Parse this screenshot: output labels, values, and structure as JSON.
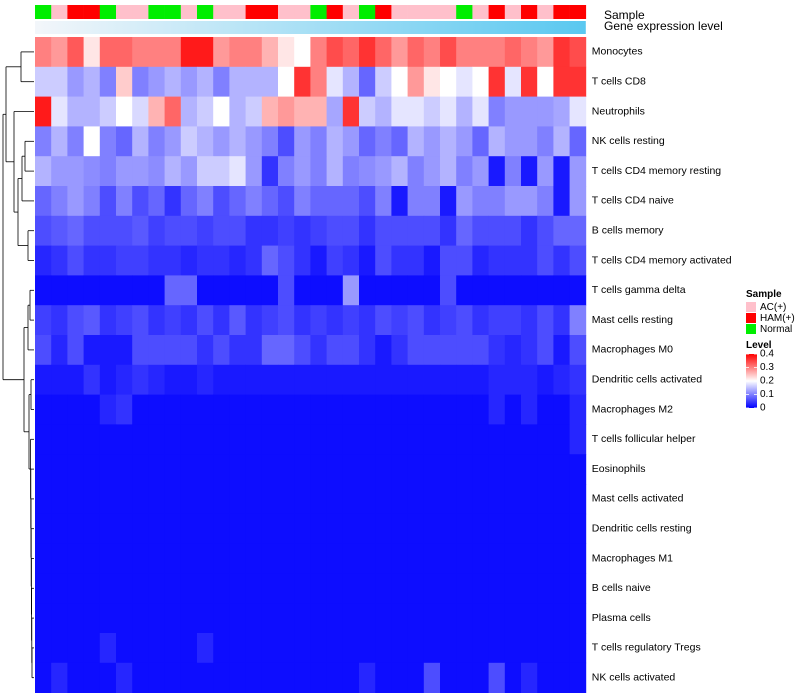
{
  "chart_data": {
    "type": "heatmap",
    "annotation_labels": {
      "sample": "Sample",
      "expression": "Gene expression level"
    },
    "sample_groups": [
      "Normal",
      "AC(+)",
      "HAM(+)",
      "HAM(+)",
      "Normal",
      "AC(+)",
      "AC(+)",
      "Normal",
      "Normal",
      "AC(+)",
      "Normal",
      "AC(+)",
      "AC(+)",
      "HAM(+)",
      "HAM(+)",
      "AC(+)",
      "AC(+)",
      "Normal",
      "HAM(+)",
      "AC(+)",
      "Normal",
      "HAM(+)",
      "AC(+)",
      "AC(+)",
      "AC(+)",
      "AC(+)",
      "Normal",
      "AC(+)",
      "HAM(+)",
      "AC(+)",
      "HAM(+)",
      "AC(+)",
      "HAM(+)",
      "HAM(+)"
    ],
    "group_colors": {
      "AC(+)": "#FFC0CB",
      "HAM(+)": "#FF0000",
      "Normal": "#00EE00"
    },
    "expression_bar_colors": [
      "#F3F6FA",
      "#5AC8F0"
    ],
    "rows": [
      {
        "name": "Monocytes",
        "values": [
          0.3,
          0.28,
          0.33,
          0.22,
          0.32,
          0.32,
          0.3,
          0.3,
          0.3,
          0.38,
          0.38,
          0.28,
          0.3,
          0.3,
          0.26,
          0.22,
          0.2,
          0.3,
          0.34,
          0.32,
          0.36,
          0.32,
          0.28,
          0.32,
          0.3,
          0.34,
          0.3,
          0.3,
          0.3,
          0.32,
          0.3,
          0.28,
          0.36,
          0.34
        ]
      },
      {
        "name": "T cells CD8",
        "values": [
          0.16,
          0.16,
          0.12,
          0.14,
          0.1,
          0.24,
          0.1,
          0.12,
          0.14,
          0.12,
          0.14,
          0.1,
          0.14,
          0.14,
          0.14,
          0.2,
          0.36,
          0.3,
          0.18,
          0.14,
          0.08,
          0.16,
          0.2,
          0.28,
          0.22,
          0.2,
          0.18,
          0.2,
          0.36,
          0.18,
          0.36,
          0.2,
          0.36,
          0.36
        ]
      },
      {
        "name": "Neutrophils",
        "values": [
          0.38,
          0.18,
          0.14,
          0.14,
          0.16,
          0.2,
          0.17,
          0.26,
          0.32,
          0.14,
          0.16,
          0.2,
          0.14,
          0.16,
          0.26,
          0.28,
          0.26,
          0.26,
          0.13,
          0.36,
          0.16,
          0.14,
          0.18,
          0.18,
          0.16,
          0.18,
          0.14,
          0.18,
          0.1,
          0.12,
          0.12,
          0.12,
          0.13,
          0.18
        ]
      },
      {
        "name": "NK cells resting",
        "values": [
          0.1,
          0.14,
          0.1,
          0.2,
          0.1,
          0.08,
          0.14,
          0.1,
          0.12,
          0.16,
          0.14,
          0.12,
          0.14,
          0.12,
          0.1,
          0.06,
          0.12,
          0.1,
          0.14,
          0.12,
          0.08,
          0.1,
          0.08,
          0.14,
          0.12,
          0.14,
          0.12,
          0.08,
          0.14,
          0.12,
          0.12,
          0.1,
          0.14,
          0.08
        ]
      },
      {
        "name": "T cells CD4 memory resting",
        "values": [
          0.14,
          0.12,
          0.12,
          0.11,
          0.1,
          0.12,
          0.12,
          0.11,
          0.14,
          0.12,
          0.16,
          0.16,
          0.18,
          0.12,
          0.04,
          0.1,
          0.12,
          0.1,
          0.14,
          0.1,
          0.11,
          0.12,
          0.14,
          0.1,
          0.12,
          0.14,
          0.1,
          0.12,
          0.02,
          0.1,
          0.02,
          0.12,
          0.02,
          0.12
        ]
      },
      {
        "name": "T cells CD4 naive",
        "values": [
          0.08,
          0.1,
          0.12,
          0.1,
          0.06,
          0.1,
          0.06,
          0.08,
          0.04,
          0.08,
          0.1,
          0.06,
          0.08,
          0.1,
          0.08,
          0.06,
          0.1,
          0.08,
          0.08,
          0.08,
          0.06,
          0.1,
          0.02,
          0.1,
          0.1,
          0.02,
          0.12,
          0.1,
          0.1,
          0.12,
          0.12,
          0.1,
          0.02,
          0.12
        ]
      },
      {
        "name": "B cells memory",
        "values": [
          0.06,
          0.07,
          0.08,
          0.06,
          0.06,
          0.06,
          0.07,
          0.05,
          0.06,
          0.06,
          0.05,
          0.06,
          0.06,
          0.04,
          0.04,
          0.05,
          0.04,
          0.05,
          0.06,
          0.06,
          0.04,
          0.06,
          0.06,
          0.06,
          0.06,
          0.04,
          0.08,
          0.06,
          0.06,
          0.06,
          0.04,
          0.06,
          0.08,
          0.08
        ]
      },
      {
        "name": "T cells CD4 memory activated",
        "values": [
          0.03,
          0.04,
          0.06,
          0.04,
          0.04,
          0.05,
          0.05,
          0.04,
          0.04,
          0.03,
          0.04,
          0.04,
          0.03,
          0.04,
          0.08,
          0.06,
          0.04,
          0.02,
          0.05,
          0.04,
          0.02,
          0.06,
          0.04,
          0.04,
          0.02,
          0.06,
          0.06,
          0.03,
          0.04,
          0.04,
          0.04,
          0.06,
          0.04,
          0.06
        ]
      },
      {
        "name": "T cells gamma delta",
        "values": [
          0.01,
          0.01,
          0.01,
          0.01,
          0.01,
          0.01,
          0.01,
          0.01,
          0.08,
          0.08,
          0.01,
          0.01,
          0.01,
          0.01,
          0.01,
          0.06,
          0.01,
          0.01,
          0.01,
          0.12,
          0.01,
          0.01,
          0.01,
          0.01,
          0.01,
          0.06,
          0.01,
          0.01,
          0.01,
          0.01,
          0.01,
          0.01,
          0.01,
          0.01
        ]
      },
      {
        "name": "Mast cells resting",
        "values": [
          0.05,
          0.04,
          0.06,
          0.07,
          0.04,
          0.05,
          0.06,
          0.04,
          0.05,
          0.04,
          0.06,
          0.04,
          0.07,
          0.04,
          0.05,
          0.06,
          0.04,
          0.05,
          0.04,
          0.05,
          0.04,
          0.06,
          0.05,
          0.06,
          0.04,
          0.05,
          0.06,
          0.04,
          0.05,
          0.05,
          0.04,
          0.06,
          0.04,
          0.1
        ]
      },
      {
        "name": "Macrophages M0",
        "values": [
          0.06,
          0.03,
          0.06,
          0.02,
          0.02,
          0.02,
          0.06,
          0.06,
          0.06,
          0.06,
          0.04,
          0.06,
          0.04,
          0.04,
          0.08,
          0.08,
          0.06,
          0.04,
          0.06,
          0.06,
          0.04,
          0.02,
          0.04,
          0.06,
          0.06,
          0.06,
          0.06,
          0.06,
          0.04,
          0.03,
          0.04,
          0.06,
          0.02,
          0.06
        ]
      },
      {
        "name": "Dendritic cells activated",
        "values": [
          0.02,
          0.02,
          0.02,
          0.04,
          0.02,
          0.03,
          0.04,
          0.03,
          0.02,
          0.02,
          0.03,
          0.02,
          0.02,
          0.02,
          0.02,
          0.02,
          0.02,
          0.02,
          0.02,
          0.02,
          0.02,
          0.02,
          0.02,
          0.02,
          0.02,
          0.02,
          0.02,
          0.02,
          0.03,
          0.03,
          0.03,
          0.02,
          0.03,
          0.04
        ]
      },
      {
        "name": "Macrophages M2",
        "values": [
          0.01,
          0.01,
          0.01,
          0.01,
          0.03,
          0.04,
          0.01,
          0.01,
          0.01,
          0.01,
          0.01,
          0.01,
          0.01,
          0.01,
          0.01,
          0.01,
          0.01,
          0.01,
          0.01,
          0.01,
          0.01,
          0.01,
          0.01,
          0.01,
          0.01,
          0.01,
          0.01,
          0.01,
          0.03,
          0.01,
          0.03,
          0.01,
          0.01,
          0.03
        ]
      },
      {
        "name": "T cells follicular helper",
        "values": [
          0.01,
          0.01,
          0.01,
          0.01,
          0.01,
          0.01,
          0.01,
          0.01,
          0.01,
          0.01,
          0.01,
          0.01,
          0.01,
          0.01,
          0.01,
          0.01,
          0.01,
          0.01,
          0.01,
          0.01,
          0.01,
          0.01,
          0.01,
          0.01,
          0.01,
          0.01,
          0.01,
          0.01,
          0.01,
          0.01,
          0.01,
          0.01,
          0.01,
          0.03
        ]
      },
      {
        "name": "Eosinophils",
        "values": [
          0.01,
          0.01,
          0.01,
          0.01,
          0.01,
          0.01,
          0.01,
          0.01,
          0.01,
          0.01,
          0.01,
          0.01,
          0.01,
          0.01,
          0.01,
          0.01,
          0.01,
          0.01,
          0.01,
          0.01,
          0.01,
          0.01,
          0.01,
          0.01,
          0.01,
          0.01,
          0.01,
          0.01,
          0.01,
          0.01,
          0.01,
          0.01,
          0.01,
          0.01
        ]
      },
      {
        "name": "Mast cells activated",
        "values": [
          0.01,
          0.01,
          0.01,
          0.01,
          0.01,
          0.01,
          0.01,
          0.01,
          0.01,
          0.01,
          0.01,
          0.01,
          0.01,
          0.01,
          0.01,
          0.01,
          0.01,
          0.01,
          0.01,
          0.01,
          0.01,
          0.01,
          0.01,
          0.01,
          0.01,
          0.01,
          0.01,
          0.01,
          0.01,
          0.01,
          0.01,
          0.01,
          0.01,
          0.01
        ]
      },
      {
        "name": "Dendritic cells resting",
        "values": [
          0.01,
          0.01,
          0.01,
          0.01,
          0.01,
          0.01,
          0.01,
          0.01,
          0.01,
          0.01,
          0.01,
          0.01,
          0.01,
          0.01,
          0.01,
          0.01,
          0.01,
          0.01,
          0.01,
          0.01,
          0.01,
          0.01,
          0.01,
          0.01,
          0.01,
          0.01,
          0.01,
          0.01,
          0.01,
          0.01,
          0.01,
          0.01,
          0.01,
          0.01
        ]
      },
      {
        "name": "Macrophages M1",
        "values": [
          0.01,
          0.01,
          0.01,
          0.01,
          0.01,
          0.01,
          0.01,
          0.01,
          0.01,
          0.01,
          0.01,
          0.01,
          0.01,
          0.01,
          0.01,
          0.01,
          0.01,
          0.01,
          0.01,
          0.01,
          0.01,
          0.01,
          0.01,
          0.01,
          0.01,
          0.01,
          0.01,
          0.01,
          0.01,
          0.01,
          0.01,
          0.01,
          0.01,
          0.01
        ]
      },
      {
        "name": "B cells naive",
        "values": [
          0.01,
          0.01,
          0.01,
          0.01,
          0.01,
          0.01,
          0.01,
          0.01,
          0.01,
          0.01,
          0.01,
          0.01,
          0.01,
          0.01,
          0.01,
          0.01,
          0.01,
          0.01,
          0.01,
          0.01,
          0.01,
          0.01,
          0.01,
          0.01,
          0.01,
          0.01,
          0.01,
          0.01,
          0.01,
          0.01,
          0.01,
          0.01,
          0.01,
          0.01
        ]
      },
      {
        "name": "Plasma cells",
        "values": [
          0.01,
          0.01,
          0.01,
          0.01,
          0.01,
          0.01,
          0.01,
          0.01,
          0.01,
          0.01,
          0.01,
          0.01,
          0.01,
          0.01,
          0.01,
          0.01,
          0.01,
          0.01,
          0.01,
          0.01,
          0.01,
          0.01,
          0.01,
          0.01,
          0.01,
          0.01,
          0.01,
          0.01,
          0.01,
          0.01,
          0.01,
          0.01,
          0.01,
          0.01
        ]
      },
      {
        "name": "T cells regulatory  Tregs",
        "values": [
          0.01,
          0.01,
          0.01,
          0.01,
          0.03,
          0.01,
          0.01,
          0.01,
          0.01,
          0.01,
          0.03,
          0.01,
          0.01,
          0.01,
          0.01,
          0.01,
          0.01,
          0.01,
          0.01,
          0.01,
          0.01,
          0.01,
          0.01,
          0.01,
          0.01,
          0.01,
          0.01,
          0.01,
          0.01,
          0.01,
          0.01,
          0.01,
          0.01,
          0.01
        ]
      },
      {
        "name": "NK cells activated",
        "values": [
          0.01,
          0.03,
          0.01,
          0.01,
          0.01,
          0.03,
          0.01,
          0.01,
          0.01,
          0.01,
          0.01,
          0.01,
          0.01,
          0.01,
          0.01,
          0.01,
          0.01,
          0.01,
          0.01,
          0.01,
          0.03,
          0.01,
          0.01,
          0.01,
          0.06,
          0.01,
          0.01,
          0.01,
          0.06,
          0.01,
          0.03,
          0.01,
          0.01,
          0.01
        ]
      }
    ],
    "legend": {
      "sample_title": "Sample",
      "sample_entries": [
        "AC(+)",
        "HAM(+)",
        "Normal"
      ],
      "level_title": "Level",
      "level_ticks": [
        0.4,
        0.3,
        0.2,
        0.1,
        0
      ],
      "level_tick_labels": [
        "0.4",
        "0.3",
        "0.2",
        "0.1",
        "0"
      ],
      "scale": {
        "min": 0,
        "mid": 0.2,
        "max": 0.4,
        "low_color": "#0000FF",
        "mid_color": "#FFFFFF",
        "high_color": "#FF0000"
      }
    }
  }
}
